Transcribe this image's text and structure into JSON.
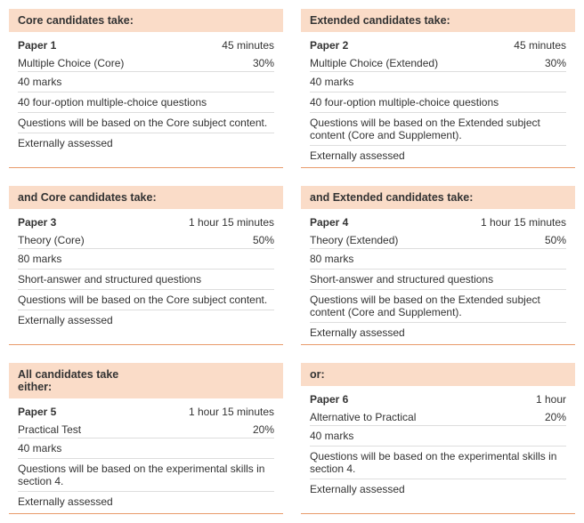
{
  "colors": {
    "header_bg": "#fadcc8",
    "card_border": "#e89a6a",
    "divider": "#dddddd",
    "text": "#333333",
    "background": "#ffffff"
  },
  "cards": [
    {
      "header": "Core candidates take:",
      "paper": "Paper 1",
      "duration": "45 minutes",
      "subtitle": "Multiple Choice (Core)",
      "weight": "30%",
      "marks": "40 marks",
      "format": "40 four-option multiple-choice questions",
      "basis": "Questions will be based on the Core subject content.",
      "assessed": "Externally assessed"
    },
    {
      "header": "Extended candidates take:",
      "paper": "Paper 2",
      "duration": "45 minutes",
      "subtitle": "Multiple Choice (Extended)",
      "weight": "30%",
      "marks": "40 marks",
      "format": "40 four-option multiple-choice questions",
      "basis": "Questions will be based on the Extended subject content (Core and Supplement).",
      "assessed": "Externally assessed"
    },
    {
      "header": "and Core candidates take:",
      "paper": "Paper 3",
      "duration": "1 hour 15 minutes",
      "subtitle": "Theory (Core)",
      "weight": "50%",
      "marks": "80 marks",
      "format": "Short-answer and structured questions",
      "basis": "Questions will be based on the Core subject content.",
      "assessed": "Externally assessed"
    },
    {
      "header": "and Extended candidates take:",
      "paper": "Paper 4",
      "duration": "1 hour 15 minutes",
      "subtitle": "Theory (Extended)",
      "weight": "50%",
      "marks": "80 marks",
      "format": "Short-answer and structured questions",
      "basis": "Questions will be based on the Extended subject content (Core and Supplement).",
      "assessed": "Externally assessed"
    },
    {
      "header": "All candidates take either:",
      "paper": "Paper 5",
      "duration": "1 hour 15 minutes",
      "subtitle": "Practical Test",
      "weight": "20%",
      "marks": "40 marks",
      "format": "",
      "basis": "Questions will be based on the experimental skills in section 4.",
      "assessed": "Externally assessed"
    },
    {
      "header": "or:",
      "paper": "Paper 6",
      "duration": "1 hour",
      "subtitle": "Alternative to Practical",
      "weight": "20%",
      "marks": "40 marks",
      "format": "",
      "basis": "Questions will be based on the experimental skills in section 4.",
      "assessed": "Externally assessed"
    }
  ]
}
